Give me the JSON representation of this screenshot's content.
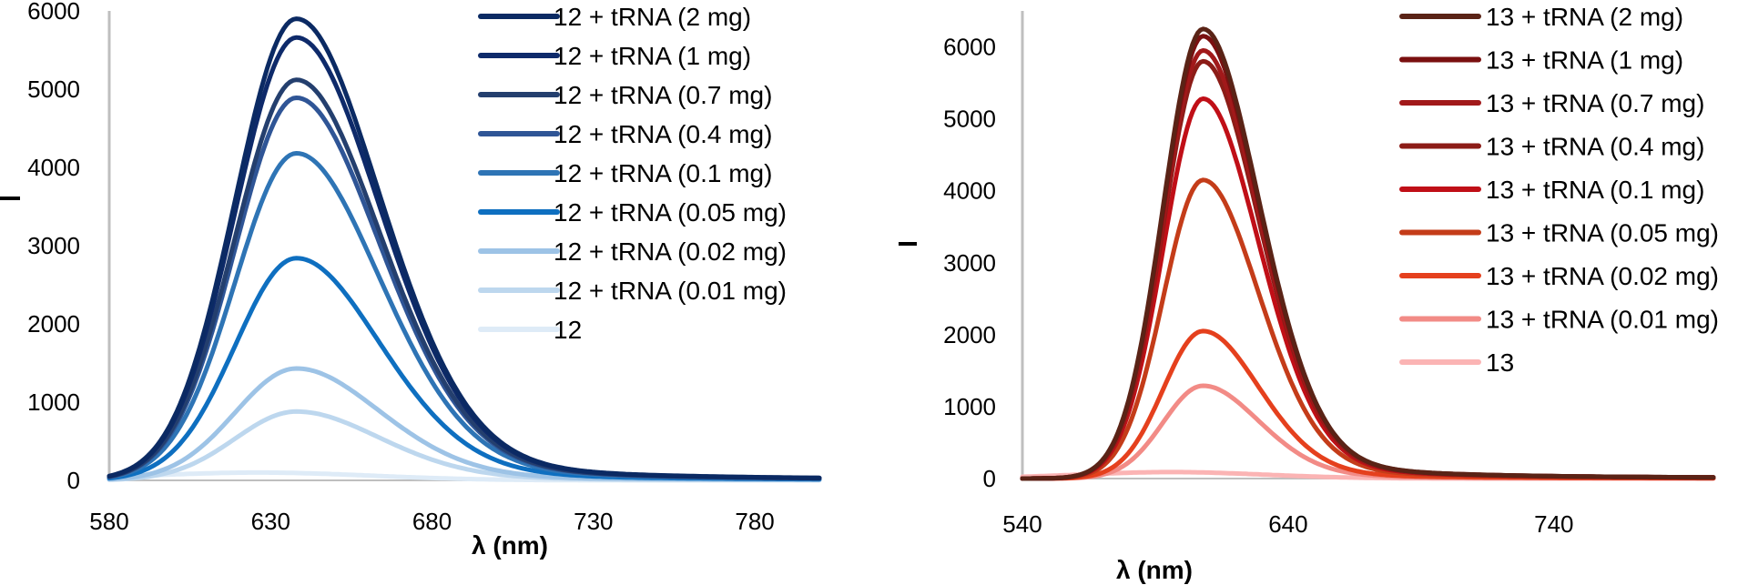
{
  "chart_data": [
    {
      "type": "line",
      "title": "",
      "xlabel": "λ (nm)",
      "ylabel": "I",
      "xlim": [
        580,
        800
      ],
      "ylim": [
        0,
        6000
      ],
      "xticks": [
        580,
        630,
        680,
        730,
        780
      ],
      "yticks": [
        0,
        1000,
        2000,
        3000,
        4000,
        5000,
        6000
      ],
      "grid": false,
      "legend_position": "top-right",
      "peak_wavelength": 638,
      "series": [
        {
          "name": "12 + tRNA (2 mg)",
          "color": "#0b2a63",
          "peak": 5900
        },
        {
          "name": "12 + tRNA (1 mg)",
          "color": "#0e2a6a",
          "peak": 5660
        },
        {
          "name": "12 + tRNA (0.7 mg)",
          "color": "#243f6e",
          "peak": 5120
        },
        {
          "name": "12 + tRNA (0.4 mg)",
          "color": "#2f5596",
          "peak": 4890
        },
        {
          "name": "12 + tRNA (0.1 mg)",
          "color": "#2e74b5",
          "peak": 4180
        },
        {
          "name": "12 + tRNA (0.05 mg)",
          "color": "#0e6fc0",
          "peak": 2840
        },
        {
          "name": "12 + tRNA (0.02 mg)",
          "color": "#9dc3e6",
          "peak": 1430
        },
        {
          "name": "12 + tRNA (0.01 mg)",
          "color": "#bdd7ee",
          "peak": 880
        },
        {
          "name": "12",
          "color": "#deebf7",
          "peak": 100
        }
      ]
    },
    {
      "type": "line",
      "title": "",
      "xlabel": "λ (nm)",
      "ylabel": "I",
      "xlim": [
        540,
        800
      ],
      "ylim": [
        0,
        6500
      ],
      "xticks": [
        540,
        640,
        740
      ],
      "yticks": [
        0,
        1000,
        2000,
        3000,
        4000,
        5000,
        6000
      ],
      "grid": false,
      "legend_position": "top-right",
      "peak_wavelength": 608,
      "series": [
        {
          "name": "13 + tRNA (2 mg)",
          "color": "#5a2316",
          "peak": 6250
        },
        {
          "name": "13 + tRNA (1 mg)",
          "color": "#7a1010",
          "peak": 6150
        },
        {
          "name": "13 + tRNA (0.7 mg)",
          "color": "#a1191a",
          "peak": 5950
        },
        {
          "name": "13 + tRNA (0.4 mg)",
          "color": "#8c1c17",
          "peak": 5800
        },
        {
          "name": "13 + tRNA (0.1 mg)",
          "color": "#c00f17",
          "peak": 5280
        },
        {
          "name": "13 + tRNA (0.05 mg)",
          "color": "#c43c19",
          "peak": 4150
        },
        {
          "name": "13 + tRNA (0.02 mg)",
          "color": "#e5401d",
          "peak": 2050
        },
        {
          "name": "13 + tRNA (0.01 mg)",
          "color": "#f28b86",
          "peak": 1290
        },
        {
          "name": "13",
          "color": "#fbb4b4",
          "peak": 90
        }
      ]
    }
  ]
}
